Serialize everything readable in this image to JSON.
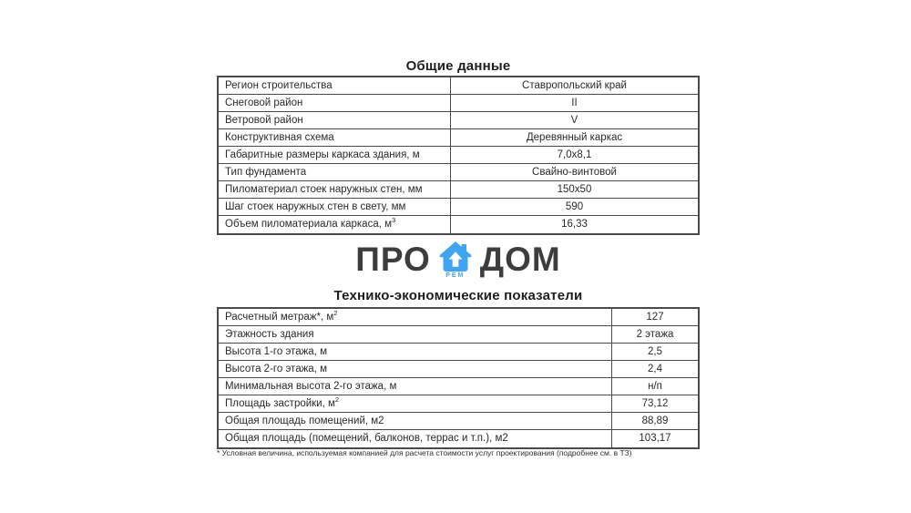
{
  "colors": {
    "brand_blue": "#3FA5F0",
    "logo_text": "#3d3d3d",
    "table_border": "#4a4a4a",
    "text": "#2a2a2a"
  },
  "table1": {
    "title": "Общие данные",
    "rows": [
      {
        "label": "Регион строительства",
        "value": "Ставропольский край"
      },
      {
        "label": "Снеговой район",
        "value": "II"
      },
      {
        "label": "Ветровой район",
        "value": "V"
      },
      {
        "label": "Конструктивная схема",
        "value": "Деревянный каркас"
      },
      {
        "label": "Габаритные размеры каркаса здания, м",
        "value": "7,0x8,1"
      },
      {
        "label": "Тип фундамента",
        "value": "Свайно-винтовой"
      },
      {
        "label": "Пиломатериал стоек наружных стен, мм",
        "value": "150x50"
      },
      {
        "label": "Шаг стоек наружных стен в свету, мм",
        "value": "590"
      },
      {
        "label": "Объем пиломатериала каркаса, м",
        "label_sup": "3",
        "value": "16,33"
      }
    ]
  },
  "logo": {
    "word_left": "ПРО",
    "word_right": "ДОМ",
    "sub": "РЕМ",
    "house_icon": "house-icon"
  },
  "table2": {
    "title": "Технико-экономические показатели",
    "rows": [
      {
        "label": "Расчетный метраж*, м",
        "label_sup": "2",
        "value": "127"
      },
      {
        "label": "Этажность здания",
        "value": "2 этажа"
      },
      {
        "label": "Высота 1-го этажа, м",
        "value": "2,5"
      },
      {
        "label": "Высота 2-го этажа, м",
        "value": "2,4"
      },
      {
        "label": "Минимальная высота 2-го этажа, м",
        "value": "н/п"
      },
      {
        "label": "Площадь застройки, м",
        "label_sup": "2",
        "value": "73,12"
      },
      {
        "label": "Общая площадь помещений, м2",
        "value": "88,89"
      },
      {
        "label": "Общая площадь (помещений, балконов, террас и т.п.), м2",
        "value": "103,17"
      }
    ]
  },
  "footnote": "* Условная величина, используемая компанией для расчета стоимости услуг проектирования (подробнее см. в ТЗ)"
}
